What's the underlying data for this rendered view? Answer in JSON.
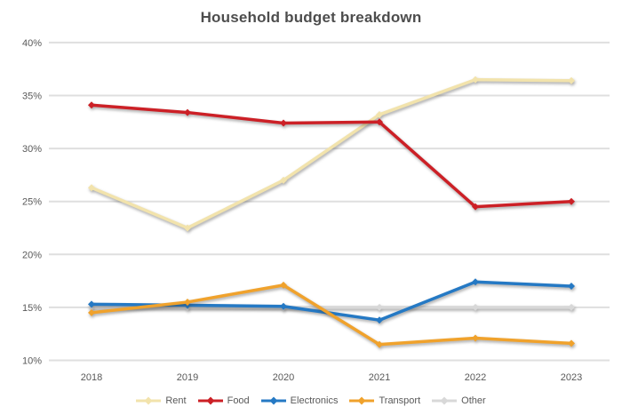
{
  "chart_data": {
    "type": "line",
    "title": "Household budget breakdown",
    "categories": [
      "2018",
      "2019",
      "2020",
      "2021",
      "2022",
      "2023"
    ],
    "series": [
      {
        "name": "Rent",
        "color": "#f2e3ac",
        "values": [
          26.3,
          22.5,
          27.0,
          33.2,
          36.5,
          36.4
        ]
      },
      {
        "name": "Food",
        "color": "#cc2026",
        "values": [
          34.1,
          33.4,
          32.4,
          32.5,
          24.5,
          25.0
        ]
      },
      {
        "name": "Electronics",
        "color": "#2579c4",
        "values": [
          15.3,
          15.2,
          15.1,
          13.8,
          17.4,
          17.0
        ]
      },
      {
        "name": "Transport",
        "color": "#f0a22c",
        "values": [
          14.5,
          15.5,
          17.1,
          11.5,
          12.1,
          11.6
        ]
      },
      {
        "name": "Other",
        "color": "#d8d8d8",
        "values": [
          15.0,
          15.0,
          15.0,
          15.0,
          15.0,
          15.0
        ]
      }
    ],
    "y_ticks": [
      {
        "label": "40%",
        "value": 40
      },
      {
        "label": "35%",
        "value": 35
      },
      {
        "label": "30%",
        "value": 30
      },
      {
        "label": "25%",
        "value": 25
      },
      {
        "label": "20%",
        "value": 20
      },
      {
        "label": "15%",
        "value": 15
      },
      {
        "label": "10%",
        "value": 10
      }
    ],
    "ylim": [
      10,
      40
    ],
    "grid": "horizontal",
    "legend_position": "bottom",
    "marker": "diamond"
  },
  "style_colors": {
    "grid": "#dfdfdf",
    "tick_text": "#595959",
    "title_text": "#4d4d4d",
    "background": "#ffffff"
  }
}
